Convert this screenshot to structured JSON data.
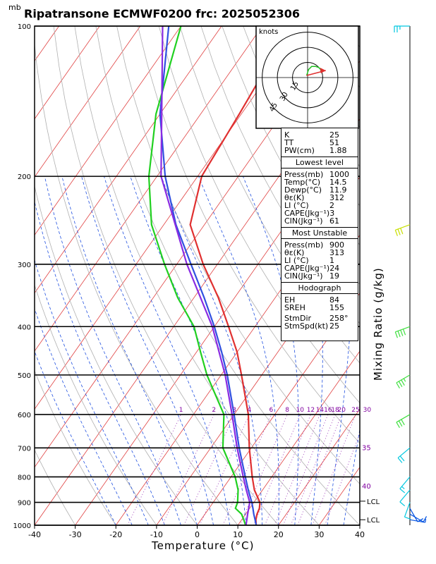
{
  "header": {
    "title": "Ripatransone ECMWF0200  frc: 2025052306",
    "unit": "mb"
  },
  "chart_data": {
    "type": "line",
    "title": "Ripatransone ECMWF0200  frc: 2025052306",
    "xlabel": "Temperature (°C)",
    "ylabel": "Mixing Ratio (g/kg)",
    "xlim": [
      -40,
      40
    ],
    "pressure_range": [
      1000,
      100
    ],
    "x_ticks": [
      -40,
      -30,
      -20,
      -10,
      0,
      10,
      20,
      30,
      40
    ],
    "pressure_levels": [
      100,
      200,
      300,
      400,
      500,
      600,
      700,
      800,
      900,
      1000
    ],
    "mixing_ratio_labels": [
      "1",
      "2",
      "3",
      "4",
      "6",
      "8",
      "10",
      "12",
      "14",
      "16",
      "18",
      "20",
      "25",
      "30"
    ],
    "saturated_adiabat_labels": [
      "35",
      "40"
    ],
    "lcl_labels": [
      "LCL",
      "LCL"
    ],
    "lcl_pressures": [
      895,
      975
    ],
    "series": [
      {
        "values": [
          [
            1000,
            14.5
          ],
          [
            975,
            13.5
          ],
          [
            950,
            12.8
          ],
          [
            925,
            12.4
          ],
          [
            900,
            11.5
          ],
          [
            850,
            8.0
          ],
          [
            800,
            5.2
          ],
          [
            700,
            -0.5
          ],
          [
            600,
            -6.5
          ],
          [
            500,
            -15.0
          ],
          [
            450,
            -20.0
          ],
          [
            400,
            -26.5
          ],
          [
            350,
            -34.0
          ],
          [
            300,
            -43.5
          ],
          [
            250,
            -53.5
          ],
          [
            200,
            -59.0
          ],
          [
            150,
            -60.5
          ],
          [
            100,
            -63.0
          ]
        ]
      },
      {
        "values": [
          [
            1000,
            11.9
          ],
          [
            975,
            10.5
          ],
          [
            950,
            9.0
          ],
          [
            925,
            6.5
          ],
          [
            900,
            6.0
          ],
          [
            850,
            4.0
          ],
          [
            800,
            1.0
          ],
          [
            700,
            -7.0
          ],
          [
            600,
            -12.5
          ],
          [
            500,
            -23.5
          ],
          [
            450,
            -29.0
          ],
          [
            400,
            -35.0
          ],
          [
            350,
            -44.0
          ],
          [
            300,
            -53.0
          ],
          [
            250,
            -63.0
          ],
          [
            200,
            -72.0
          ],
          [
            150,
            -81.0
          ],
          [
            100,
            -90.0
          ]
        ]
      },
      {
        "values": [
          [
            1000,
            14.5
          ],
          [
            975,
            13.3
          ],
          [
            950,
            12.0
          ],
          [
            925,
            10.8
          ],
          [
            900,
            9.5
          ],
          [
            850,
            6.5
          ],
          [
            800,
            3.5
          ],
          [
            700,
            -3.0
          ],
          [
            600,
            -10.0
          ],
          [
            500,
            -18.5
          ],
          [
            450,
            -23.8
          ],
          [
            400,
            -30.0
          ],
          [
            350,
            -37.5
          ],
          [
            300,
            -46.5
          ],
          [
            250,
            -57.0
          ],
          [
            200,
            -68.0
          ],
          [
            150,
            -80.0
          ],
          [
            100,
            -93.0
          ]
        ]
      },
      {
        "values": [
          [
            1000,
            12.0
          ],
          [
            950,
            10.5
          ],
          [
            900,
            9.0
          ],
          [
            850,
            6.0
          ],
          [
            800,
            3.0
          ],
          [
            700,
            -3.5
          ],
          [
            600,
            -10.5
          ],
          [
            500,
            -19.0
          ],
          [
            400,
            -30.5
          ],
          [
            300,
            -47.5
          ],
          [
            200,
            -69.0
          ],
          [
            100,
            -94.5
          ]
        ]
      }
    ],
    "hodograph": {
      "unit_label": "knots",
      "ring_labels": [
        "15",
        "30",
        "45"
      ],
      "green_path": [
        [
          -1,
          2
        ],
        [
          0,
          5
        ],
        [
          1,
          8
        ],
        [
          4,
          11
        ],
        [
          8,
          11
        ],
        [
          11,
          10
        ],
        [
          14,
          7
        ]
      ],
      "red_arrow": [
        [
          -1,
          2
        ],
        [
          18,
          7
        ]
      ]
    },
    "wind_barbs": [
      {
        "p": 100,
        "dir": 270,
        "spd": 25,
        "color": "#00c8e0"
      },
      {
        "p": 250,
        "dir": 250,
        "spd": 30,
        "color": "#c8e000"
      },
      {
        "p": 400,
        "dir": 250,
        "spd": 40,
        "color": "#40e040"
      },
      {
        "p": 500,
        "dir": 240,
        "spd": 35,
        "color": "#40e040"
      },
      {
        "p": 600,
        "dir": 240,
        "spd": 30,
        "color": "#40e040"
      },
      {
        "p": 700,
        "dir": 230,
        "spd": 20,
        "color": "#00c8e0"
      },
      {
        "p": 800,
        "dir": 220,
        "spd": 15,
        "color": "#00c8e0"
      },
      {
        "p": 850,
        "dir": 220,
        "spd": 10,
        "color": "#00c8e0"
      },
      {
        "p": 900,
        "dir": 200,
        "spd": 10,
        "color": "#00c8e0"
      },
      {
        "p": 925,
        "dir": 150,
        "spd": 10,
        "color": "#0050e0"
      },
      {
        "p": 950,
        "dir": 120,
        "spd": 10,
        "color": "#0050e0"
      },
      {
        "p": 975,
        "dir": 100,
        "spd": 5,
        "color": "#0050e0"
      }
    ]
  },
  "panel": {
    "indices": [
      {
        "label": "K",
        "value": "25"
      },
      {
        "label": "TT",
        "value": "51"
      },
      {
        "label": "PW(cm)",
        "value": "1.88"
      }
    ],
    "lowest": {
      "title": "Lowest level",
      "rows": [
        {
          "label": "Press(mb)",
          "value": "1000"
        },
        {
          "label": "Temp(°C)",
          "value": "14.5"
        },
        {
          "label": "Dewp(°C)",
          "value": "11.9"
        },
        {
          "label": "θε(K)",
          "value": "312"
        },
        {
          "label": "LI (°C)",
          "value": "2"
        },
        {
          "label": "CAPE(Jkg⁻¹)",
          "value": "3"
        },
        {
          "label": "CIN(Jkg⁻¹)",
          "value": "61"
        }
      ]
    },
    "unstable": {
      "title": "Most Unstable",
      "rows": [
        {
          "label": "Press(mb)",
          "value": "900"
        },
        {
          "label": "θε(K)",
          "value": "313"
        },
        {
          "label": "LI (°C)",
          "value": "1"
        },
        {
          "label": "CAPE(Jkg⁻¹)",
          "value": "24"
        },
        {
          "label": "CIN(Jkg⁻¹)",
          "value": "19"
        }
      ]
    },
    "hodo": {
      "title": "Hodograph",
      "rows": [
        {
          "label": "EH",
          "value": "84"
        },
        {
          "label": "SREH",
          "value": "155"
        }
      ],
      "storm": [
        {
          "label": "StmDir",
          "value": "258°"
        },
        {
          "label": "StmSpd(kt)",
          "value": "25"
        }
      ]
    }
  },
  "colors": {
    "temp": "#e03030",
    "dewpoint": "#20d020",
    "parcel": "#3050e0",
    "wetbulb": "#8a2be2",
    "mixing": "#8000a0"
  }
}
